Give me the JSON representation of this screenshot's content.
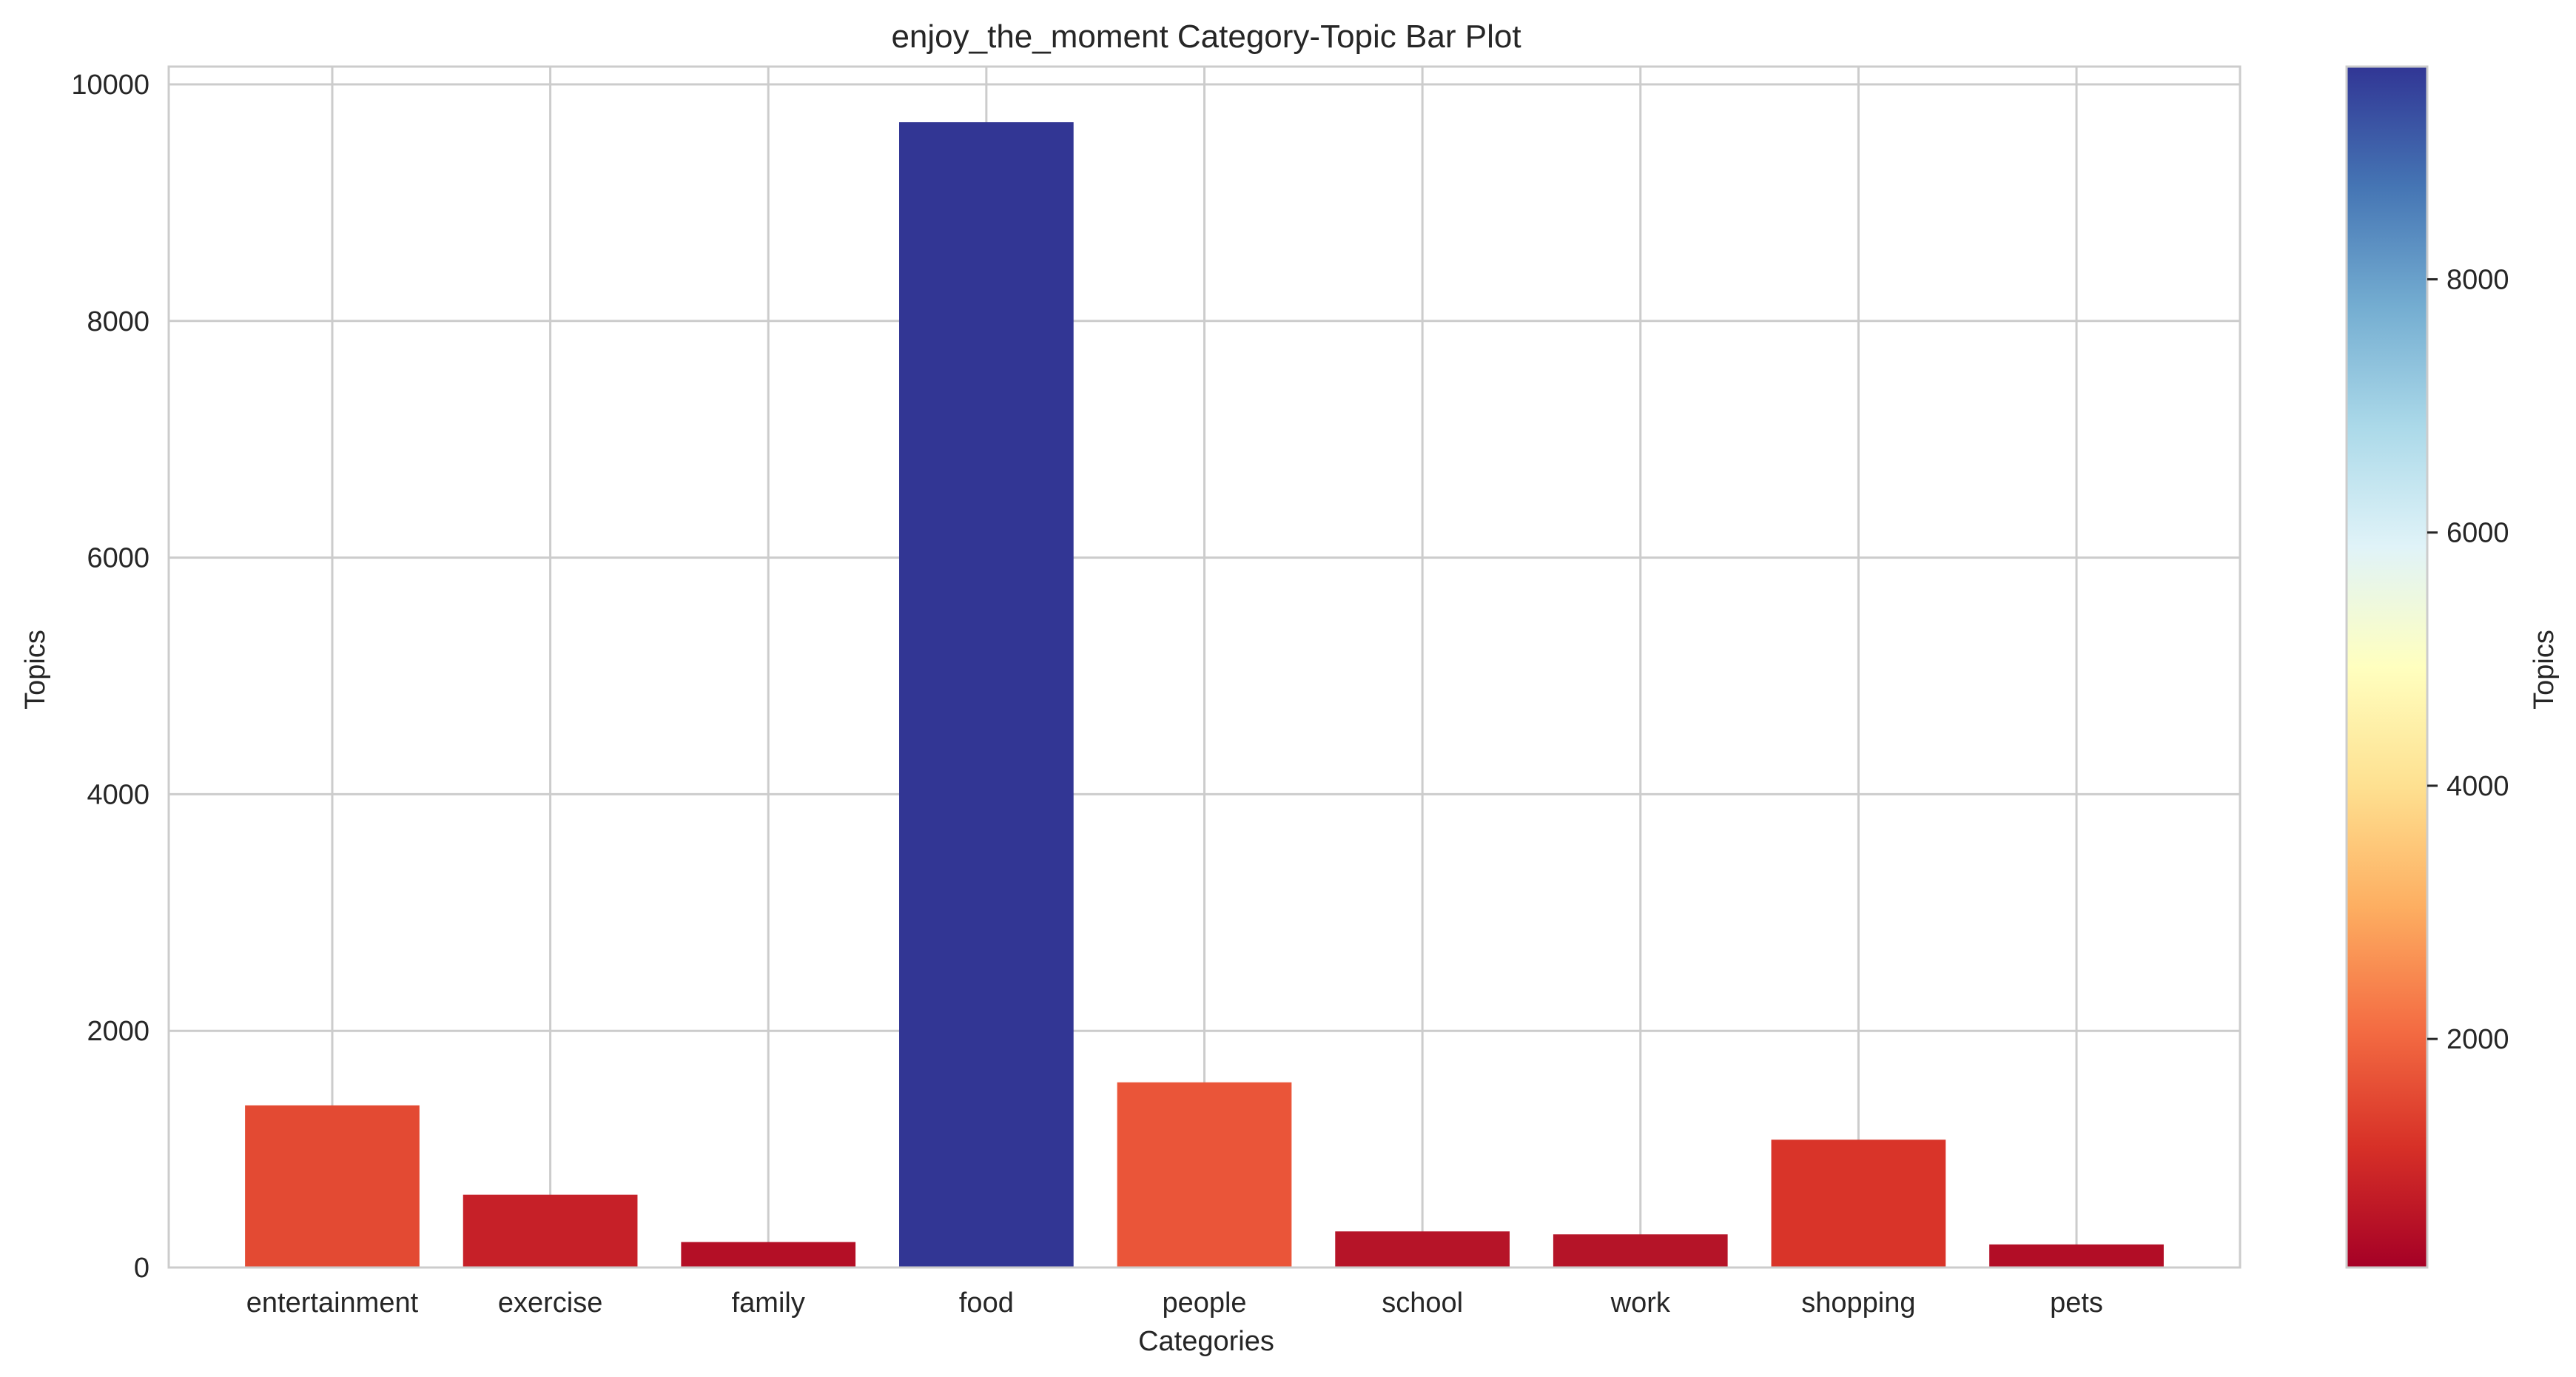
{
  "chart_data": {
    "type": "bar",
    "title": "enjoy_the_moment Category-Topic Bar Plot",
    "xlabel": "Categories",
    "ylabel": "Topics",
    "categories": [
      "entertainment",
      "exercise",
      "family",
      "food",
      "people",
      "school",
      "work",
      "shopping",
      "pets"
    ],
    "values": [
      1370,
      615,
      215,
      9680,
      1565,
      305,
      280,
      1080,
      195
    ],
    "bar_colors": [
      "#e34a33",
      "#c62028",
      "#b40f26",
      "#323694",
      "#ea5539",
      "#b61428",
      "#b51428",
      "#d93429",
      "#b20d26"
    ],
    "ylim": [
      0,
      10150
    ],
    "yticks": [
      0,
      2000,
      4000,
      6000,
      8000,
      10000
    ],
    "grid": true,
    "colorbar": {
      "label": "Topics",
      "range": [
        195,
        9680
      ],
      "ticks": [
        2000,
        4000,
        6000,
        8000
      ],
      "colormap": "RdYlBu",
      "stops": [
        "#a50026",
        "#d73027",
        "#f46d43",
        "#fdae61",
        "#fee090",
        "#ffffbf",
        "#e0f3f8",
        "#abd9e9",
        "#74add1",
        "#4575b4",
        "#313695"
      ]
    }
  }
}
